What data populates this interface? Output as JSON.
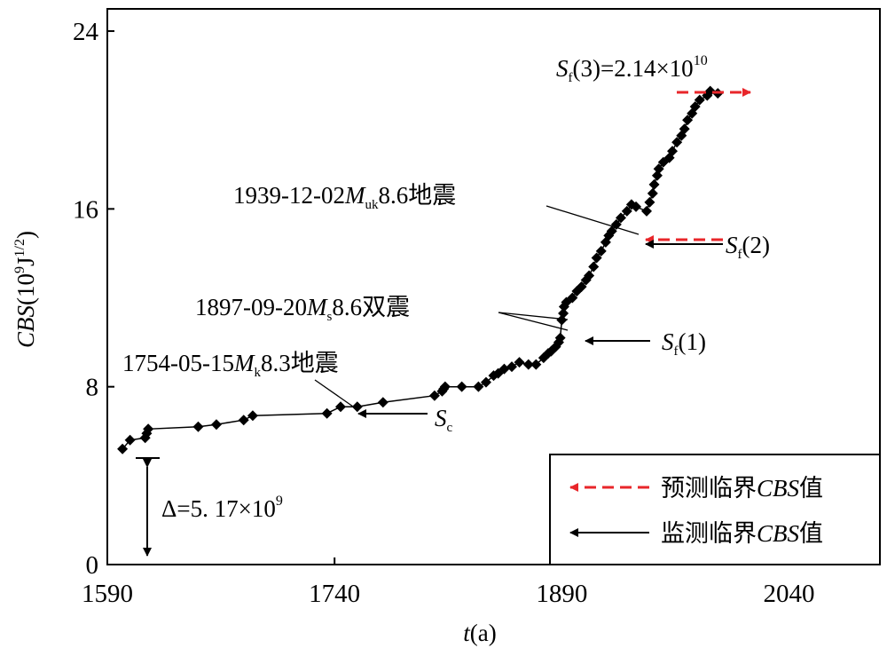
{
  "chart_data": {
    "type": "scatter",
    "xlabel_var": "t",
    "xlabel_unit": "(a)",
    "ylabel_var": "CBS",
    "ylabel_unit_open": "(10",
    "ylabel_unit_exp": "9",
    "ylabel_unit_mid": "J",
    "ylabel_unit_exp2": "1/2",
    "ylabel_unit_close": ")",
    "xlim": [
      1590,
      2100
    ],
    "ylim": [
      0,
      25
    ],
    "x_ticks": [
      1590,
      1740,
      1890,
      2040
    ],
    "y_ticks": [
      0,
      8,
      16,
      24
    ],
    "grid": false,
    "legend_position": "bottom-right",
    "series": [
      {
        "marker": "diamond",
        "color": "#000000",
        "points": [
          [
            1600,
            5.2
          ],
          [
            1605,
            5.6
          ],
          [
            1615,
            5.7
          ],
          [
            1616,
            5.9
          ],
          [
            1617,
            6.1
          ],
          [
            1650,
            6.2
          ],
          [
            1662,
            6.3
          ],
          [
            1680,
            6.5
          ],
          [
            1686,
            6.7
          ],
          [
            1735,
            6.8
          ],
          [
            1744,
            7.1
          ],
          [
            1755,
            7.1
          ],
          [
            1772,
            7.3
          ],
          [
            1806,
            7.6
          ],
          [
            1811,
            7.8
          ],
          [
            1812,
            7.9
          ],
          [
            1813,
            8.0
          ],
          [
            1824,
            8.0
          ],
          [
            1835,
            8.0
          ],
          [
            1840,
            8.2
          ],
          [
            1845,
            8.5
          ],
          [
            1848,
            8.6
          ],
          [
            1852,
            8.8
          ],
          [
            1857,
            8.9
          ],
          [
            1862,
            9.1
          ],
          [
            1868,
            9.0
          ],
          [
            1873,
            9.0
          ],
          [
            1878,
            9.3
          ],
          [
            1881,
            9.5
          ],
          [
            1883,
            9.6
          ],
          [
            1886,
            9.8
          ],
          [
            1888,
            10.0
          ],
          [
            1889,
            10.2
          ],
          [
            1890,
            11.0
          ],
          [
            1891,
            11.3
          ],
          [
            1891.5,
            11.6
          ],
          [
            1893,
            11.8
          ],
          [
            1897,
            12.0
          ],
          [
            1900,
            12.3
          ],
          [
            1903,
            12.5
          ],
          [
            1906,
            12.8
          ],
          [
            1908,
            13.0
          ],
          [
            1911,
            13.4
          ],
          [
            1913,
            13.8
          ],
          [
            1916,
            14.1
          ],
          [
            1919,
            14.5
          ],
          [
            1921,
            14.8
          ],
          [
            1923,
            15.0
          ],
          [
            1926,
            15.3
          ],
          [
            1929,
            15.6
          ],
          [
            1933,
            15.9
          ],
          [
            1936,
            16.2
          ],
          [
            1939,
            16.1
          ],
          [
            1946,
            15.9
          ],
          [
            1948,
            16.3
          ],
          [
            1950,
            16.7
          ],
          [
            1951,
            17.1
          ],
          [
            1953,
            17.5
          ],
          [
            1954,
            17.8
          ],
          [
            1957,
            18.1
          ],
          [
            1961,
            18.3
          ],
          [
            1963,
            18.6
          ],
          [
            1966,
            19.0
          ],
          [
            1969,
            19.3
          ],
          [
            1971,
            19.6
          ],
          [
            1973,
            20.0
          ],
          [
            1976,
            20.3
          ],
          [
            1978,
            20.6
          ],
          [
            1981,
            20.9
          ],
          [
            1986,
            21.1
          ],
          [
            1988,
            21.3
          ],
          [
            1993,
            21.2
          ]
        ]
      }
    ],
    "annotations": {
      "sf3": {
        "pre": "S",
        "sub": "f",
        "mid": "(3)=2.14×10",
        "sup": "10",
        "x": 1993,
        "y": 21.2
      },
      "e1939": {
        "pre": "1939-12-02",
        "var": "M",
        "sub": "uk",
        "post": "8.6地震",
        "x": 1921,
        "y": 14.8
      },
      "sf2": {
        "pre": "S",
        "sub": "f",
        "post": "(2)",
        "x": 1921,
        "y": 14.6
      },
      "e1897": {
        "pre": "1897-09-20",
        "var": "M",
        "sub": "s",
        "post": "8.6双震",
        "points": [
          [
            1890,
            11.0
          ],
          [
            1889,
            10.2
          ]
        ]
      },
      "sf1": {
        "pre": "S",
        "sub": "f",
        "post": "(1)",
        "x": 1891,
        "y": 10.0
      },
      "e1754": {
        "pre": "1754-05-15",
        "var": "M",
        "sub": "k",
        "post": "8.3地震",
        "x": 1744,
        "y": 7.1
      },
      "sc": {
        "pre": "S",
        "sub": "c",
        "x": 1738,
        "y": 6.8
      },
      "delta": {
        "text": "Δ=5. 17×10",
        "sup": "9",
        "y_low": 0,
        "y_high": 4.8,
        "x": 1600
      }
    },
    "legend": [
      {
        "style": "dashed",
        "color": "#e8262a",
        "pre": "预测临界",
        "var": "CBS",
        "post": "值"
      },
      {
        "style": "solid",
        "color": "#000000",
        "pre": "监测临界",
        "var": "CBS",
        "post": "值"
      }
    ]
  }
}
